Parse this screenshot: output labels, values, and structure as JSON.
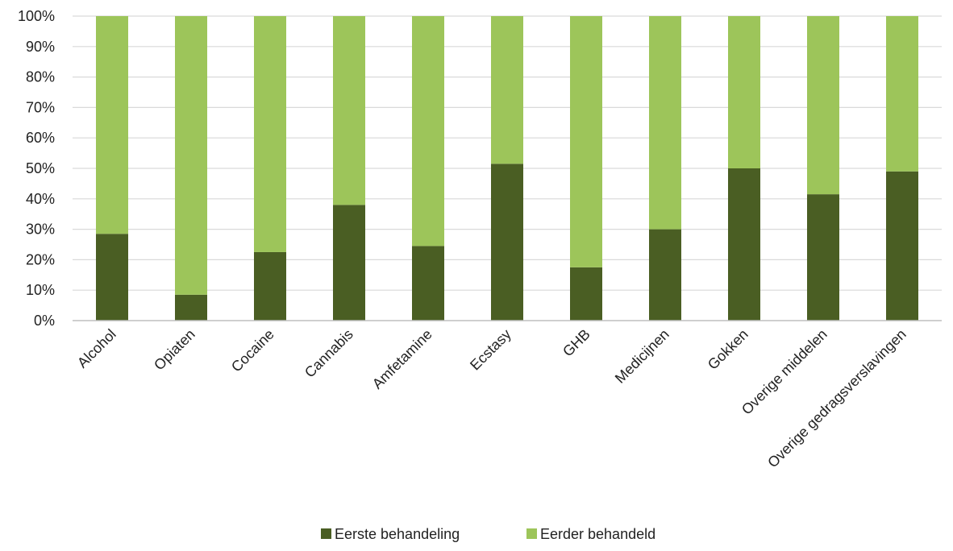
{
  "colors": {
    "eerste": "#4a5e23",
    "eerder": "#9dc55a",
    "grid": "#d9d9d9",
    "axis": "#bfbfbf"
  },
  "chart_data": {
    "type": "bar",
    "stacked": true,
    "categories": [
      "Alcohol",
      "Opiaten",
      "Cocaine",
      "Cannabis",
      "Amfetamine",
      "Ecstasy",
      "GHB",
      "Medicijnen",
      "Gokken",
      "Overige middelen",
      "Overige gedragsverslavingen"
    ],
    "series": [
      {
        "name": "Eerste behandeling",
        "values": [
          28.5,
          8.5,
          22.5,
          38,
          24.5,
          51.5,
          17.5,
          30,
          50,
          41.5,
          49
        ]
      },
      {
        "name": "Eerder behandeld",
        "values": [
          71.5,
          91.5,
          77.5,
          62,
          75.5,
          48.5,
          82.5,
          70,
          50,
          58.5,
          51
        ]
      }
    ],
    "ylim": [
      0,
      100
    ],
    "yticks": [
      "0%",
      "10%",
      "20%",
      "30%",
      "40%",
      "50%",
      "60%",
      "70%",
      "80%",
      "90%",
      "100%"
    ],
    "grid": true,
    "legend": "bottom"
  }
}
